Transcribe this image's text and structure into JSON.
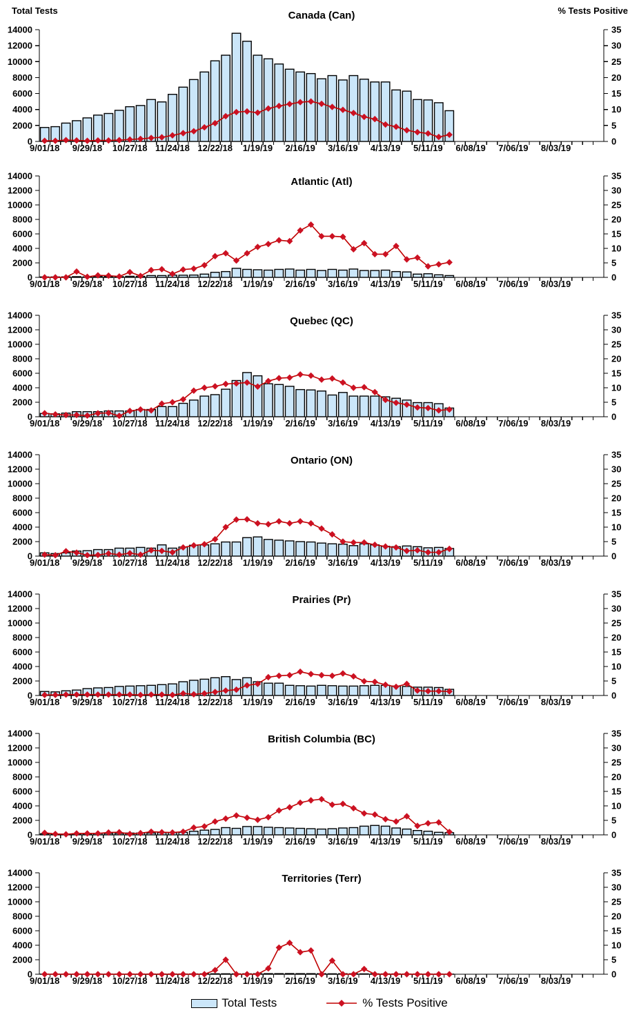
{
  "report": {
    "left_axis_title": "Total Tests",
    "right_axis_title": "% Tests Positive"
  },
  "legend": {
    "total_tests": "Total Tests",
    "pct_positive": "% Tests Positive"
  },
  "colors": {
    "bar_fill": "#CBE6F9",
    "bar_stroke": "#000000",
    "line": "#C00000",
    "marker": "#CC1122",
    "axis": "#000000",
    "background": "#FFFFFF"
  },
  "axes": {
    "left_ticks": [
      0,
      2000,
      4000,
      6000,
      8000,
      10000,
      12000,
      14000
    ],
    "right_ticks": [
      0,
      5,
      10,
      15,
      20,
      25,
      30,
      35
    ],
    "left_range": [
      0,
      14000
    ],
    "right_range": [
      0,
      35
    ],
    "x_tick_labels": [
      "9/01/18",
      "9/29/18",
      "10/27/18",
      "11/24/18",
      "12/22/18",
      "1/19/19",
      "2/16/19",
      "3/16/19",
      "4/13/19",
      "5/11/19",
      "6/08/19",
      "7/06/19",
      "8/03/19"
    ],
    "weeks_per_label": 4,
    "total_axis_weeks": 53,
    "grid": false
  },
  "chart_data": [
    {
      "type": "bar",
      "region": "canada",
      "title": "Canada (Can)",
      "series": [
        {
          "name": "Total Tests",
          "axis": "left",
          "values": [
            1750,
            1850,
            2300,
            2600,
            2950,
            3300,
            3500,
            3900,
            4350,
            4500,
            5250,
            4950,
            5900,
            6800,
            7750,
            8700,
            10100,
            10800,
            13550,
            12550,
            10800,
            10350,
            9700,
            9050,
            8700,
            8500,
            7850,
            8250,
            7700,
            8250,
            7800,
            7450,
            7450,
            6450,
            6300,
            5250,
            5200,
            4850,
            3850
          ]
        },
        {
          "name": "% Tests Positive",
          "axis": "right",
          "values": [
            0.2,
            0.2,
            0.4,
            0.3,
            0.2,
            0.3,
            0.3,
            0.4,
            0.6,
            0.8,
            1.1,
            1.3,
            1.9,
            2.6,
            3.2,
            4.4,
            5.7,
            7.9,
            9.2,
            9.4,
            9.0,
            10.3,
            11.1,
            11.7,
            12.3,
            12.5,
            11.8,
            10.8,
            9.9,
            8.9,
            7.7,
            7.0,
            5.3,
            4.6,
            3.5,
            2.9,
            2.5,
            1.4,
            2.1
          ]
        }
      ]
    },
    {
      "type": "bar",
      "region": "atlantic",
      "title": "Atlantic (Atl)",
      "series": [
        {
          "name": "Total Tests",
          "axis": "left",
          "values": [
            60,
            60,
            70,
            100,
            70,
            150,
            120,
            100,
            150,
            150,
            250,
            250,
            300,
            300,
            320,
            450,
            700,
            800,
            1250,
            1100,
            1050,
            1000,
            1100,
            1150,
            1000,
            1100,
            950,
            1100,
            1000,
            1150,
            950,
            950,
            1000,
            800,
            750,
            450,
            500,
            350,
            250
          ]
        },
        {
          "name": "% Tests Positive",
          "axis": "right",
          "values": [
            0,
            0,
            0,
            2.0,
            0.2,
            0.7,
            0.6,
            0.3,
            1.8,
            0.5,
            2.5,
            2.8,
            1.2,
            2.7,
            3.0,
            4.2,
            7.3,
            8.3,
            5.8,
            8.3,
            10.5,
            11.5,
            12.8,
            12.5,
            16.2,
            18.2,
            14.2,
            14.2,
            14.0,
            9.7,
            11.8,
            8.0,
            8.0,
            10.8,
            6.2,
            6.8,
            3.8,
            4.5,
            5.2
          ]
        }
      ]
    },
    {
      "type": "bar",
      "region": "quebec",
      "title": "Quebec (QC)",
      "series": [
        {
          "name": "Total Tests",
          "axis": "left",
          "values": [
            450,
            400,
            500,
            700,
            700,
            700,
            800,
            800,
            800,
            1000,
            1000,
            1400,
            1400,
            1850,
            2300,
            2850,
            3050,
            3800,
            5000,
            6100,
            5650,
            4550,
            4450,
            4200,
            3750,
            3700,
            3550,
            3000,
            3350,
            2850,
            2850,
            2850,
            2750,
            2550,
            2300,
            1950,
            1950,
            1800,
            1200
          ]
        },
        {
          "name": "% Tests Positive",
          "axis": "right",
          "values": [
            1.2,
            0.8,
            0.6,
            0.6,
            0.4,
            1.2,
            1.3,
            0.3,
            2.0,
            2.5,
            2.2,
            4.5,
            5.0,
            6.0,
            9.0,
            10.0,
            10.5,
            11.3,
            11.5,
            11.8,
            10.4,
            12.3,
            13.3,
            13.5,
            14.6,
            14.2,
            12.8,
            13.2,
            11.8,
            10.0,
            10.2,
            8.5,
            5.8,
            4.8,
            4.2,
            3.2,
            3.0,
            2.2,
            2.5
          ]
        }
      ]
    },
    {
      "type": "bar",
      "region": "ontario",
      "title": "Ontario (ON)",
      "series": [
        {
          "name": "Total Tests",
          "axis": "left",
          "values": [
            450,
            350,
            450,
            700,
            750,
            900,
            900,
            1100,
            1100,
            1200,
            1100,
            1550,
            1100,
            1250,
            1500,
            1550,
            1700,
            1950,
            1950,
            2550,
            2650,
            2300,
            2200,
            2100,
            2000,
            1950,
            1800,
            1700,
            1650,
            1450,
            1700,
            1550,
            1350,
            1300,
            1400,
            1300,
            1150,
            1200,
            1050
          ]
        },
        {
          "name": "% Tests Positive",
          "axis": "right",
          "values": [
            0.5,
            0.3,
            1.7,
            1.2,
            0.3,
            0.4,
            0.9,
            0.5,
            1.0,
            0.5,
            2.0,
            1.8,
            1.3,
            3.0,
            3.7,
            4.1,
            5.8,
            10.0,
            12.6,
            12.7,
            11.3,
            11.0,
            12.0,
            11.3,
            12.0,
            11.3,
            9.5,
            7.5,
            5.0,
            4.7,
            4.7,
            3.9,
            3.3,
            3.0,
            1.8,
            2.0,
            1.3,
            1.3,
            2.5
          ]
        }
      ]
    },
    {
      "type": "bar",
      "region": "prairies",
      "title": "Prairies (Pr)",
      "series": [
        {
          "name": "Total Tests",
          "axis": "left",
          "values": [
            550,
            500,
            650,
            750,
            950,
            1050,
            1100,
            1250,
            1300,
            1350,
            1400,
            1500,
            1600,
            1900,
            2100,
            2250,
            2450,
            2600,
            2200,
            2450,
            1900,
            1700,
            1700,
            1400,
            1350,
            1300,
            1400,
            1350,
            1300,
            1300,
            1350,
            1400,
            1400,
            1300,
            1250,
            1150,
            1150,
            1100,
            850
          ]
        },
        {
          "name": "% Tests Positive",
          "axis": "right",
          "values": [
            0.2,
            0.2,
            0.3,
            0.3,
            0.3,
            0.3,
            0.3,
            0.3,
            0.3,
            0.2,
            0.3,
            0.3,
            0.2,
            0.7,
            0.4,
            0.7,
            1.2,
            1.7,
            2.0,
            3.5,
            4.0,
            6.3,
            6.8,
            7.0,
            8.2,
            7.4,
            7.0,
            6.8,
            7.6,
            6.6,
            4.9,
            4.7,
            3.7,
            3.0,
            4.0,
            1.7,
            1.5,
            1.5,
            1.4
          ]
        }
      ]
    },
    {
      "type": "bar",
      "region": "british-columbia",
      "title": "British Columbia (BC)",
      "series": [
        {
          "name": "Total Tests",
          "axis": "left",
          "values": [
            150,
            100,
            100,
            150,
            150,
            200,
            200,
            200,
            250,
            250,
            250,
            300,
            300,
            350,
            500,
            650,
            750,
            1000,
            900,
            1150,
            1150,
            1050,
            1000,
            950,
            900,
            850,
            800,
            850,
            950,
            1000,
            1200,
            1300,
            1200,
            950,
            800,
            600,
            500,
            350,
            300
          ]
        },
        {
          "name": "% Tests Positive",
          "axis": "right",
          "values": [
            0.7,
            0.3,
            0.2,
            0.5,
            0.5,
            0.5,
            0.8,
            0.9,
            0.3,
            0.6,
            1.1,
            0.9,
            0.8,
            1.1,
            2.5,
            2.9,
            4.6,
            5.6,
            6.7,
            5.9,
            5.2,
            6.1,
            8.4,
            9.5,
            11.1,
            11.9,
            12.3,
            10.4,
            10.7,
            9.2,
            7.4,
            7.0,
            5.4,
            4.6,
            6.4,
            3.1,
            4.0,
            4.3,
            1.0
          ]
        }
      ]
    },
    {
      "type": "bar",
      "region": "territories",
      "title": "Territories (Terr)",
      "series": [
        {
          "name": "Total Tests",
          "axis": "left",
          "values": [
            10,
            10,
            10,
            15,
            10,
            15,
            15,
            20,
            20,
            20,
            25,
            25,
            30,
            30,
            40,
            50,
            60,
            60,
            50,
            60,
            70,
            80,
            80,
            90,
            80,
            80,
            70,
            60,
            70,
            60,
            50,
            50,
            40,
            40,
            30,
            30,
            20,
            20,
            15
          ]
        },
        {
          "name": "% Tests Positive",
          "axis": "right",
          "values": [
            0,
            0,
            0,
            0,
            0,
            0,
            0,
            0,
            0,
            0,
            0,
            0,
            0,
            0,
            0,
            0,
            1.4,
            5.0,
            0,
            0,
            0,
            2.0,
            9.2,
            10.8,
            7.6,
            8.2,
            0,
            4.7,
            0,
            0,
            1.8,
            0,
            0,
            0,
            0,
            0,
            0,
            0,
            0
          ]
        }
      ]
    }
  ]
}
